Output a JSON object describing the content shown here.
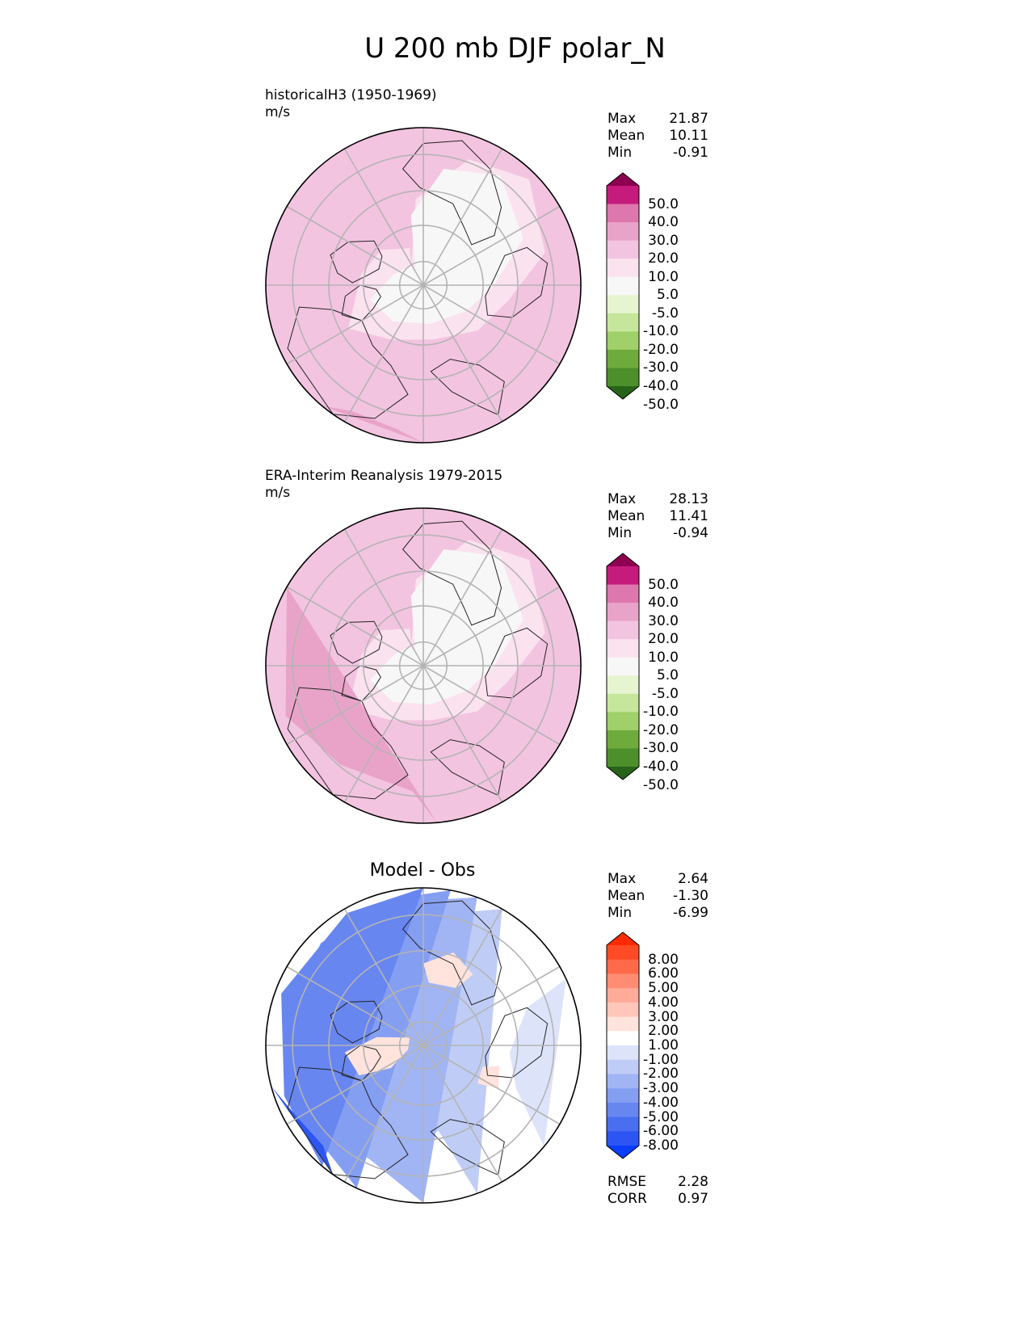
{
  "title": "U 200 mb DJF polar_N",
  "panels": [
    {
      "title": "historicalH3 (1950-1969)",
      "units": "m/s",
      "stats": {
        "max_label": "Max",
        "max": "21.87",
        "mean_label": "Mean",
        "mean": "10.11",
        "min_label": "Min",
        "min": "-0.91"
      }
    },
    {
      "title": "ERA-Interim Reanalysis 1979-2015",
      "units": "m/s",
      "stats": {
        "max_label": "Max",
        "max": "28.13",
        "mean_label": "Mean",
        "mean": "11.41",
        "min_label": "Min",
        "min": "-0.94"
      }
    },
    {
      "title": "Model - Obs",
      "stats": {
        "max_label": "Max",
        "max": "2.64",
        "mean_label": "Mean",
        "mean": "-1.30",
        "min_label": "Min",
        "min": "-6.99"
      },
      "metrics": {
        "rmse_label": "RMSE",
        "rmse": "2.28",
        "corr_label": "CORR",
        "corr": "0.97"
      }
    }
  ],
  "chart_data": [
    {
      "type": "heatmap",
      "projection": "north-polar-stereographic",
      "title": "historicalH3 (1950-1969)",
      "units": "m/s",
      "levels": [
        -50,
        -40,
        -30,
        -20,
        -10,
        -5,
        5,
        10,
        20,
        30,
        40,
        50
      ],
      "level_labels": [
        "50.0",
        "40.0",
        "30.0",
        "20.0",
        "10.0",
        "5.0",
        "-5.0",
        "-10.0",
        "-20.0",
        "-30.0",
        "-40.0",
        "-50.0"
      ],
      "colors": [
        "#8e0152",
        "#c51b7d",
        "#de77ae",
        "#e9a3c9",
        "#f3c4e0",
        "#fbe2ef",
        "#f7f7f7",
        "#e6f5d0",
        "#c6e69c",
        "#9fd06a",
        "#6fab3c",
        "#4d8f2a",
        "#276419"
      ],
      "max": 21.87,
      "mean": 10.11,
      "min": -0.91
    },
    {
      "type": "heatmap",
      "projection": "north-polar-stereographic",
      "title": "ERA-Interim Reanalysis 1979-2015",
      "units": "m/s",
      "levels": [
        -50,
        -40,
        -30,
        -20,
        -10,
        -5,
        5,
        10,
        20,
        30,
        40,
        50
      ],
      "level_labels": [
        "50.0",
        "40.0",
        "30.0",
        "20.0",
        "10.0",
        "5.0",
        "-5.0",
        "-10.0",
        "-20.0",
        "-30.0",
        "-40.0",
        "-50.0"
      ],
      "colors": [
        "#8e0152",
        "#c51b7d",
        "#de77ae",
        "#e9a3c9",
        "#f3c4e0",
        "#fbe2ef",
        "#f7f7f7",
        "#e6f5d0",
        "#c6e69c",
        "#9fd06a",
        "#6fab3c",
        "#4d8f2a",
        "#276419"
      ],
      "max": 28.13,
      "mean": 11.41,
      "min": -0.94
    },
    {
      "type": "heatmap",
      "projection": "north-polar-stereographic",
      "title": "Model - Obs",
      "levels": [
        -8,
        -6,
        -5,
        -4,
        -3,
        -2,
        -1,
        1,
        2,
        3,
        4,
        5,
        6,
        8
      ],
      "level_labels": [
        "8.00",
        "6.00",
        "5.00",
        "4.00",
        "3.00",
        "2.00",
        "1.00",
        "-1.00",
        "-2.00",
        "-3.00",
        "-4.00",
        "-5.00",
        "-6.00",
        "-8.00"
      ],
      "colors": [
        "#ff2a00",
        "#ff4a26",
        "#ff6b4a",
        "#ff8c73",
        "#ffab99",
        "#ffc7ba",
        "#ffe3dc",
        "#ffffff",
        "#dde4fa",
        "#bfcdf6",
        "#a1b5f4",
        "#849ef2",
        "#6786f0",
        "#4a6ef0",
        "#2c55f3",
        "#0a3dff"
      ],
      "max": 2.64,
      "mean": -1.3,
      "min": -6.99,
      "rmse": 2.28,
      "corr": 0.97
    }
  ]
}
